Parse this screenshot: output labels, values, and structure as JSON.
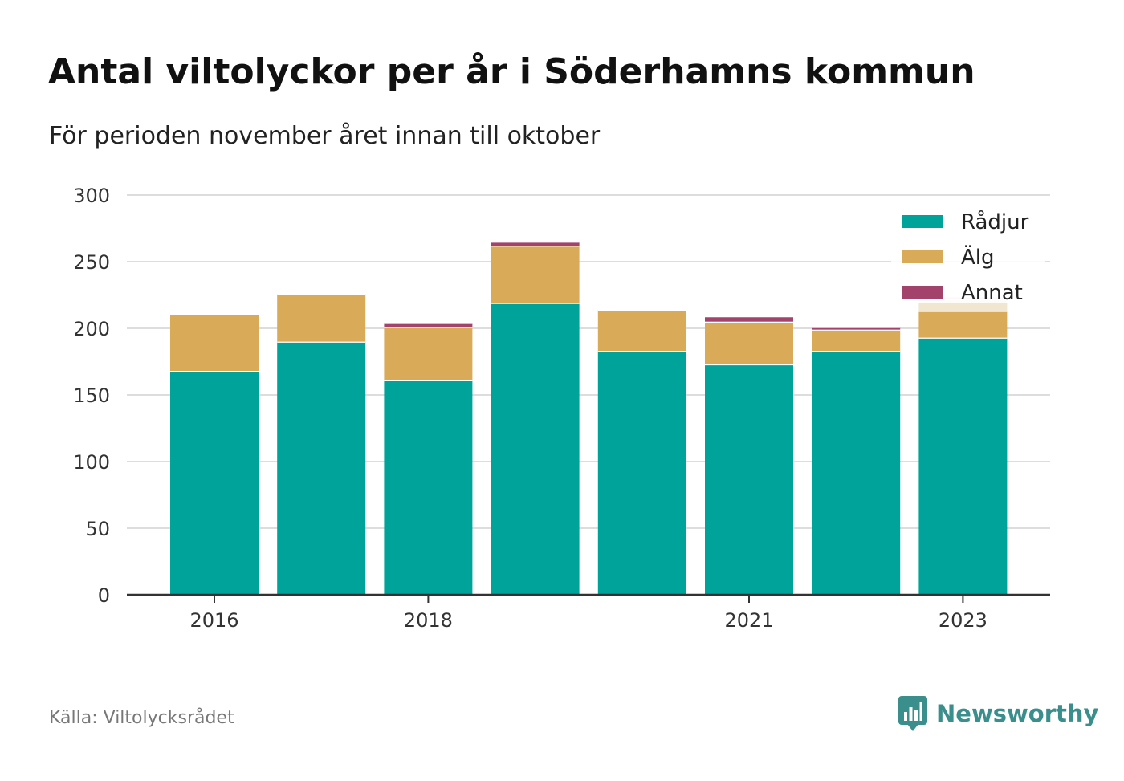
{
  "title": "Antal viltolyckor per år i Söderhamns kommun",
  "subtitle": "För perioden november året innan till oktober",
  "source": "Källa: Viltolycksrådet",
  "brand": {
    "name": "Newsworthy",
    "icon": "newsworthy-logo-icon",
    "color": "#3a8f8c"
  },
  "chart_data": {
    "type": "bar",
    "stacked": true,
    "categories": [
      "2016",
      "2017",
      "2018",
      "2019",
      "2020",
      "2021",
      "2022",
      "2023"
    ],
    "x_tick_labels": [
      "2016",
      "",
      "2018",
      "",
      "",
      "2021",
      "",
      "2023"
    ],
    "series": [
      {
        "name": "Rådjur",
        "color": "#00a39a",
        "values": [
          168,
          190,
          161,
          219,
          183,
          173,
          183,
          193
        ]
      },
      {
        "name": "Älg",
        "color": "#d9ab58",
        "values": [
          43,
          36,
          40,
          43,
          31,
          32,
          16,
          20
        ]
      },
      {
        "name": "Annat",
        "color": "#a3426b",
        "values": [
          0,
          0,
          3,
          3,
          0,
          4,
          2,
          0
        ]
      }
    ],
    "partial_estimate": {
      "category": "2023",
      "values": {
        "Rådjur": 0,
        "Älg": 9,
        "Annat": 2
      },
      "colors": {
        "Älg": "#f1e6d0",
        "Annat": "#ead2dc"
      }
    },
    "y_ticks": [
      0,
      50,
      100,
      150,
      200,
      250,
      300
    ],
    "ylim": [
      0,
      300
    ],
    "grid": true,
    "legend_position": "top-right"
  }
}
